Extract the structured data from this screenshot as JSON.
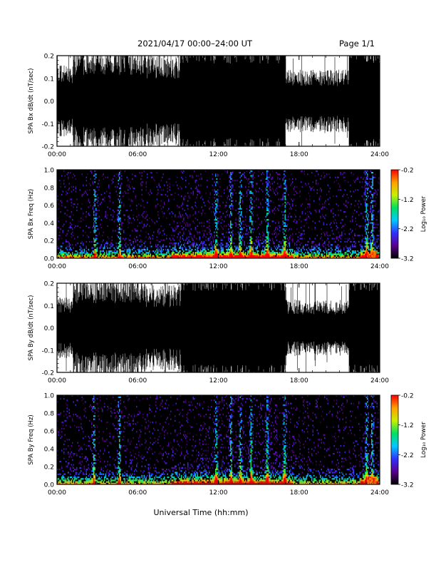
{
  "header": {
    "date_range": "2021/04/17  00:00–24:00 UT",
    "page": "Page 1/1"
  },
  "x_axis": {
    "label": "Universal Time (hh:mm)",
    "ticks": [
      "00:00",
      "06:00",
      "12:00",
      "18:00",
      "24:00"
    ],
    "range_hours": [
      0,
      24
    ]
  },
  "colorbar": {
    "label": "Log₁₀ Power",
    "ticks": [
      "-0.2",
      "-1.2",
      "-2.2",
      "-3.2"
    ],
    "range": [
      -3.2,
      -0.2
    ],
    "colors": [
      "#000000",
      "#5a0090",
      "#3030ff",
      "#00c8ff",
      "#00e060",
      "#c8f000",
      "#ffa000",
      "#ff0000"
    ]
  },
  "colors": {
    "trace": "#000000",
    "spectrogram_background": "#000000",
    "frame": "#000000"
  },
  "chart_data": [
    {
      "type": "line",
      "ylabel": "SPA Bx dB/dt (nT/sec)",
      "ylim": [
        -0.2,
        0.2
      ],
      "yticks": [
        "-0.2",
        "-0.1",
        "0.0",
        "0.1",
        "0.2"
      ],
      "segments": [
        {
          "t": [
            0,
            1.2
          ],
          "amp": 0.14
        },
        {
          "t": [
            1.2,
            6.6
          ],
          "amp": 0.21
        },
        {
          "t": [
            6.6,
            9.2
          ],
          "amp": 0.18
        },
        {
          "t": [
            9.2,
            17.0
          ],
          "amp": 0.3
        },
        {
          "t": [
            17.0,
            21.7
          ],
          "amp": 0.12
        },
        {
          "t": [
            21.7,
            24.0
          ],
          "amp": 0.3
        }
      ]
    },
    {
      "type": "heatmap",
      "ylabel": "SPA Bx Freq (Hz)",
      "ylim": [
        0,
        1.0
      ],
      "yticks": [
        "0.0",
        "0.2",
        "0.4",
        "0.6",
        "0.8",
        "1.0"
      ],
      "hotspots_hours": [
        2.8,
        4.6,
        11.8,
        12.9,
        13.6,
        14.4,
        15.6,
        16.9,
        23.0,
        23.4
      ]
    },
    {
      "type": "line",
      "ylabel": "SPA By dB/dt (nT/sec)",
      "ylim": [
        -0.2,
        0.2
      ],
      "yticks": [
        "-0.2",
        "-0.1",
        "0.0",
        "0.1",
        "0.2"
      ],
      "segments": [
        {
          "t": [
            0,
            1.2
          ],
          "amp": 0.12
        },
        {
          "t": [
            1.2,
            6.6
          ],
          "amp": 0.2
        },
        {
          "t": [
            6.6,
            9.2
          ],
          "amp": 0.17
        },
        {
          "t": [
            9.2,
            17.0
          ],
          "amp": 0.3
        },
        {
          "t": [
            17.0,
            21.7
          ],
          "amp": 0.11
        },
        {
          "t": [
            21.7,
            24.0
          ],
          "amp": 0.3
        }
      ]
    },
    {
      "type": "heatmap",
      "ylabel": "SPA By Freq (Hz)",
      "ylim": [
        0,
        1.0
      ],
      "yticks": [
        "0.0",
        "0.2",
        "0.4",
        "0.6",
        "0.8",
        "1.0"
      ],
      "hotspots_hours": [
        2.7,
        4.6,
        11.8,
        12.9,
        13.6,
        14.4,
        15.6,
        16.9,
        23.0,
        23.4
      ]
    }
  ]
}
